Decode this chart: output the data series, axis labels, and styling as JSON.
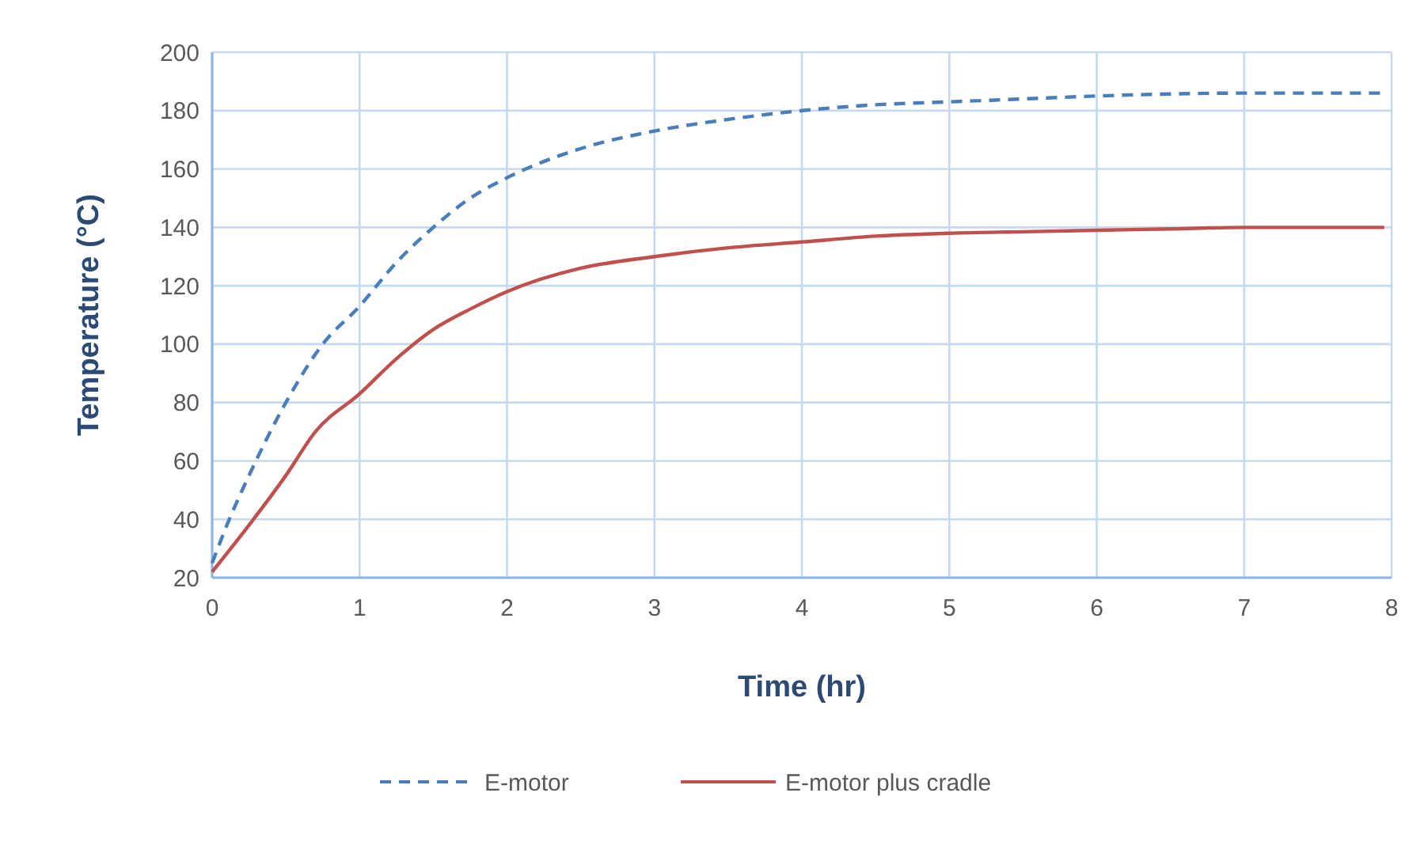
{
  "chart_data": {
    "type": "line",
    "xlabel": "Time (hr)",
    "ylabel": "Temperature (°C)",
    "xlim": [
      0,
      8
    ],
    "xticks": [
      0,
      1,
      2,
      3,
      4,
      5,
      6,
      7,
      8
    ],
    "ylim": [
      20,
      200
    ],
    "yticks": [
      20,
      40,
      60,
      80,
      100,
      120,
      140,
      160,
      180,
      200
    ],
    "grid": true,
    "legend": "bottom",
    "marker": "none",
    "series": [
      {
        "name": "E-motor",
        "color": "#4a7ebb",
        "line_style": "dashed",
        "x": [
          0,
          0.1,
          0.25,
          0.5,
          0.75,
          1,
          1.25,
          1.5,
          1.75,
          2,
          2.5,
          3,
          3.5,
          4,
          4.5,
          5,
          5.5,
          6,
          7,
          7.95
        ],
        "values": [
          25,
          38,
          55,
          80,
          100,
          113,
          128,
          140,
          150,
          157,
          167,
          173,
          177,
          180,
          182,
          183,
          184,
          185,
          186,
          186
        ]
      },
      {
        "name": "E-motor plus cradle",
        "color": "#c0504d",
        "line_style": "solid",
        "x": [
          0,
          0.25,
          0.5,
          0.7,
          1,
          1.25,
          1.5,
          1.75,
          2,
          2.5,
          3,
          3.5,
          4,
          4.5,
          5,
          5.5,
          6,
          6.5,
          7,
          7.5,
          7.95
        ],
        "values": [
          22,
          38,
          55,
          70,
          83,
          95,
          105,
          112,
          118,
          126,
          130,
          133,
          135,
          137,
          138,
          138.5,
          139,
          139.5,
          140,
          140,
          140
        ]
      }
    ]
  }
}
